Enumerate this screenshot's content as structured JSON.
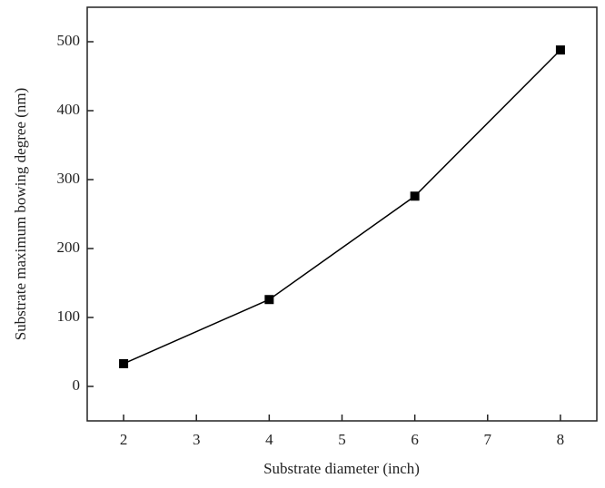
{
  "chart_data": {
    "type": "line",
    "x_label": "Substrate diameter (inch)",
    "y_label": "Substrate maximum bowing degree (nm)",
    "x": [
      2,
      4,
      6,
      8
    ],
    "series": [
      {
        "color": "#000000",
        "values": [
          33,
          126,
          276,
          488
        ]
      }
    ],
    "xlim": [
      1.5,
      8.5
    ],
    "xticks": [
      2,
      3,
      4,
      5,
      6,
      7,
      8
    ],
    "ylim": [
      -50,
      550
    ],
    "yticks": [
      0,
      100,
      200,
      300,
      400,
      500
    ],
    "grid": false,
    "marker": "square"
  }
}
